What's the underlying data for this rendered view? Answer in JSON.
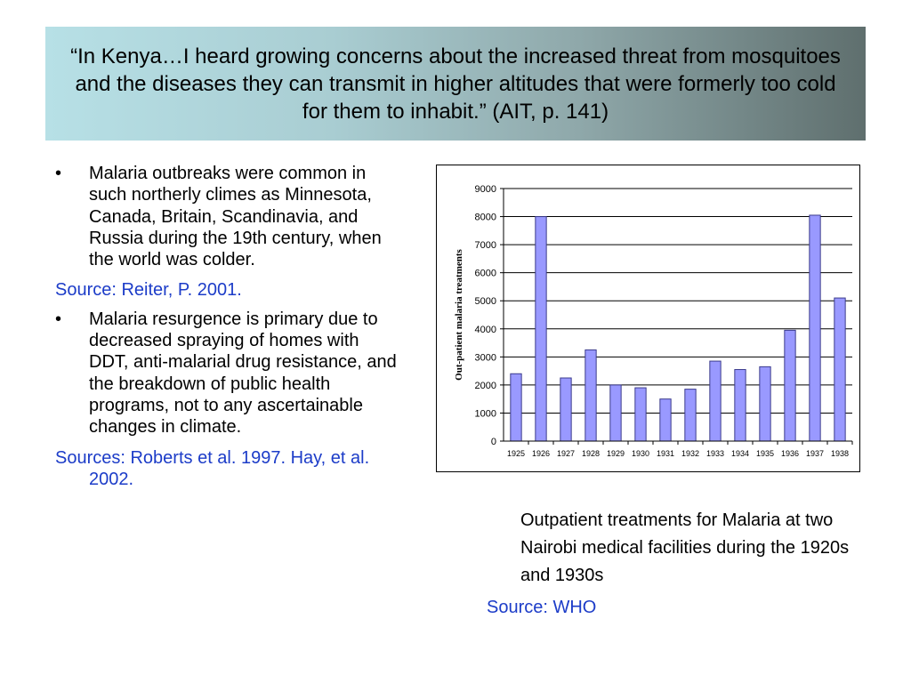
{
  "title": "“In Kenya…I heard growing concerns about the increased threat from mosquitoes and the diseases they can transmit in higher altitudes that were formerly too cold for them to inhabit.” (AIT, p. 141)",
  "bullets": [
    {
      "marker": "•",
      "text": "Malaria outbreaks were common in such northerly climes as Minnesota, Canada, Britain, Scandinavia, and Russia during the 19th century, when the world was colder."
    },
    {
      "marker": "•",
      "text": "Malaria resurgence is primary due to decreased spraying of homes with DDT, anti-malarial drug resistance, and the breakdown of public health programs, not to any ascertainable changes in climate."
    }
  ],
  "sources": {
    "first": "Source: Reiter, P. 2001.",
    "second": "Sources:  Roberts et al. 1997. Hay, et al. 2002."
  },
  "caption": "Outpatient treatments for Malaria at two Nairobi medical facilities during the 1920s and 1930s",
  "caption_source": "Source: WHO",
  "colors": {
    "bar_fill": "#9999ff",
    "bar_stroke": "#3b3b8c",
    "source_text": "#1c3cc8"
  },
  "chart_data": {
    "type": "bar",
    "title": "",
    "xlabel": "",
    "ylabel": "Out-patient malaria treatments",
    "categories": [
      "1925",
      "1926",
      "1927",
      "1928",
      "1929",
      "1930",
      "1931",
      "1932",
      "1933",
      "1934",
      "1935",
      "1936",
      "1937",
      "1938"
    ],
    "values": [
      2400,
      8000,
      2250,
      3250,
      2000,
      1900,
      1500,
      1850,
      2850,
      2550,
      2650,
      3950,
      8050,
      5100
    ],
    "ylim": [
      0,
      9000
    ],
    "yticks": [
      "0",
      "1000",
      "2000",
      "3000",
      "4000",
      "5000",
      "6000",
      "7000",
      "8000",
      "9000"
    ],
    "grid": true,
    "legend": "none"
  }
}
